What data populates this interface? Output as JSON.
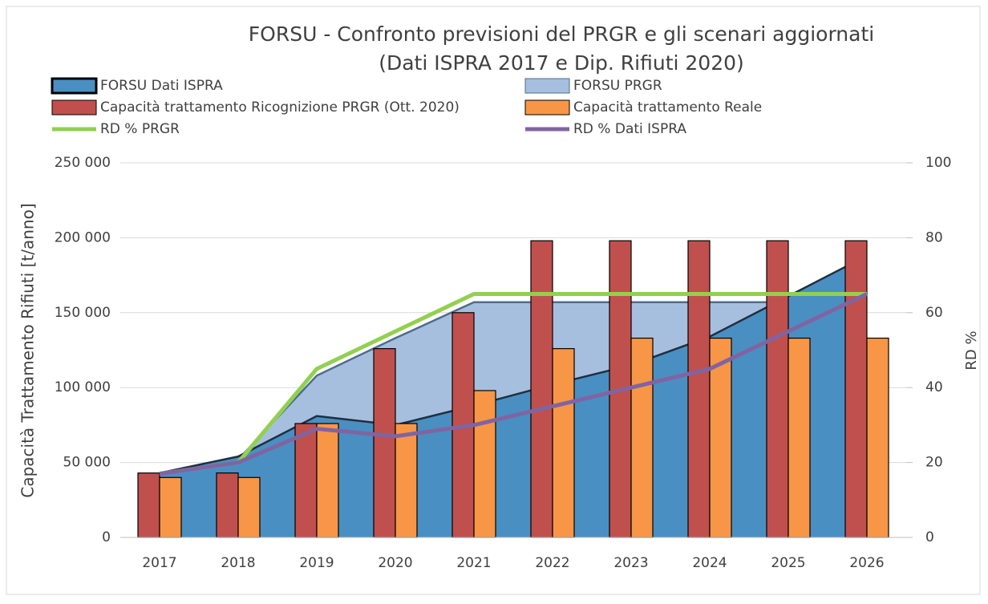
{
  "chart_data": {
    "type": "combo",
    "title": "FORSU - Confronto previsioni del PRGR e gli scenari aggiornati",
    "subtitle": "(Dati ISPRA 2017 e Dip. Rifiuti 2020)",
    "y_label": "Capacità Trattamento Rifiuti [t/anno]",
    "y2_label": "RD %",
    "categories": [
      "2017",
      "2018",
      "2019",
      "2020",
      "2021",
      "2022",
      "2023",
      "2024",
      "2025",
      "2026"
    ],
    "series": [
      {
        "name": "FORSU Dati ISPRA",
        "type": "area",
        "color": "#4a8fc2",
        "values": [
          43000,
          54000,
          81000,
          75000,
          88000,
          102000,
          115000,
          134000,
          161000,
          188000
        ]
      },
      {
        "name": "FORSU PRGR",
        "type": "area",
        "color": "#a7bfde",
        "values": [
          43000,
          52000,
          108000,
          133000,
          157000,
          157000,
          157000,
          157000,
          157000,
          157000
        ]
      },
      {
        "name": "Capacità trattamento Ricognizione PRGR (Ott. 2020)",
        "type": "bar",
        "color": "#c0504d",
        "values": [
          43000,
          43000,
          76000,
          126000,
          150000,
          198000,
          198000,
          198000,
          198000,
          198000
        ]
      },
      {
        "name": "Capacità trattamento Reale",
        "type": "bar",
        "color": "#f79646",
        "values": [
          40000,
          40000,
          76000,
          76000,
          98000,
          126000,
          133000,
          133000,
          133000,
          133000
        ]
      },
      {
        "name": "RD % PRGR",
        "type": "line",
        "axis": "y2",
        "color": "#92d050",
        "values": [
          17,
          20,
          45,
          55,
          65,
          65,
          65,
          65,
          65,
          65
        ]
      },
      {
        "name": "RD % Dati ISPRA",
        "type": "line",
        "axis": "y2",
        "color": "#8064a2",
        "values": [
          17,
          20,
          29,
          27,
          30,
          35,
          40,
          45,
          55,
          65
        ]
      }
    ],
    "ylim": [
      0,
      250000
    ],
    "yticks": [
      0,
      {
        "value": 50000,
        "label": "50 000"
      },
      {
        "value": 100000,
        "label": "100 000"
      },
      {
        "value": 150000,
        "label": "150 000"
      },
      {
        "value": 200000,
        "label": "200 000"
      },
      {
        "value": 250000,
        "label": "250 000"
      }
    ],
    "y2lim": [
      0,
      100
    ],
    "y2ticks": [
      0,
      20,
      40,
      60,
      80,
      100
    ],
    "grid": true
  }
}
